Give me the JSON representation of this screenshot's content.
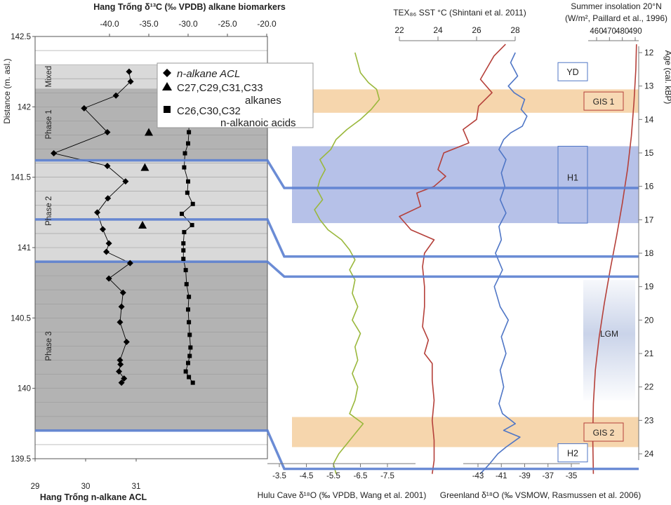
{
  "chart_data": {
    "type": "line",
    "title": "",
    "top_axes": {
      "d13c_title": "Hang Trống  δ¹³C (‰ VPDB) alkane biomarkers",
      "tex86_title": "TEX₈₆ SST °C (Shintani et al. 2011)",
      "insolation_title_1": "Summer insolation 20°N",
      "insolation_title_2": "(W/m², Paillard et al., 1996)"
    },
    "bottom_axes": {
      "acl_label": "Hang Trống  n-alkane ACL",
      "hulu_label": "Hulu Cave δ¹⁸O (‰ VPDB, Wang et al. 2001)",
      "greenland_label": "Greenland δ¹⁸O (‰ VSMOW, Rasmussen et al. 2006)"
    },
    "left_axis": {
      "label": "Distance (m. asl.)",
      "range": [
        139.5,
        142.5
      ],
      "ticks": [
        "142.5",
        "142",
        "141.5",
        "141",
        "140.5",
        "140",
        "139.5"
      ]
    },
    "right_axis": {
      "label": "Age (cal. kBP)",
      "range": [
        12,
        24.6
      ],
      "ticks": [
        "12",
        "13",
        "14",
        "15",
        "16",
        "17",
        "18",
        "19",
        "20",
        "21",
        "22",
        "23",
        "24"
      ]
    },
    "d13c_axis": {
      "range": [
        -42,
        -20
      ],
      "ticks": [
        "-40.0",
        "-35.0",
        "-30.0",
        "-25.0",
        "-20.0"
      ]
    },
    "acl_axis": {
      "range": [
        29,
        32.25
      ],
      "ticks": [
        "29",
        "30",
        "31"
      ]
    },
    "hulu_axis": {
      "range": [
        -3.2,
        -8.0
      ],
      "ticks": [
        "-3.5",
        "-4.5",
        "-5.5",
        "-6.5",
        "-7.5"
      ]
    },
    "greenland_axis": {
      "range": [
        -45.4,
        -34.6
      ],
      "ticks": [
        "-43",
        "-41",
        "-39",
        "-37",
        "-35"
      ]
    },
    "tex86_axis": {
      "range": [
        22,
        28
      ],
      "ticks": [
        "22",
        "24",
        "26",
        "28"
      ]
    },
    "insolation_axis": {
      "range": [
        443,
        494
      ],
      "ticks": [
        "460",
        "470",
        "480",
        "490"
      ]
    },
    "phases": [
      {
        "label": "Mixed",
        "top": 142.3,
        "bottom": 142.13,
        "shade": "#d9d9d9"
      },
      {
        "label": "Phase 1",
        "top": 142.13,
        "bottom": 141.62,
        "shade": "#b3b3b3"
      },
      {
        "label": "Phase 2",
        "top": 141.62,
        "bottom": 140.9,
        "shade": "#d9d9d9"
      },
      {
        "label": "Phase 3",
        "top": 140.9,
        "bottom": 139.7,
        "shade": "#b3b3b3"
      }
    ],
    "legend": {
      "acl": "n-alkane ACL",
      "alkanes_line1": "C27,C29,C31,C33",
      "alkanes_line2": "alkanes",
      "acids_line1": "C26,C30,C32",
      "acids_line2": "n-alkanoic acids"
    },
    "events": [
      {
        "label": "YD",
        "age": 12.55,
        "type": "label"
      },
      {
        "label": "GIS 1",
        "from": 13.1,
        "to": 13.8,
        "type": "orange-band"
      },
      {
        "label": "H1",
        "from": 14.8,
        "to": 17.1,
        "type": "blue-band"
      },
      {
        "label": "LGM",
        "from": 18.8,
        "to": 22.4,
        "type": "gradient"
      },
      {
        "label": "GIS 2",
        "from": 22.9,
        "to": 23.8,
        "type": "orange-band"
      },
      {
        "label": "H2",
        "age": 23.95,
        "type": "label"
      }
    ],
    "series": [
      {
        "name": "n-alkane ACL",
        "axis": "acl",
        "color": "#000000",
        "points": [
          [
            30.86,
            142.25
          ],
          [
            30.89,
            142.18
          ],
          [
            30.6,
            142.08
          ],
          [
            29.97,
            141.99
          ],
          [
            30.43,
            141.82
          ],
          [
            29.37,
            141.67
          ],
          [
            30.43,
            141.58
          ],
          [
            30.79,
            141.47
          ],
          [
            30.44,
            141.35
          ],
          [
            30.23,
            141.25
          ],
          [
            30.34,
            141.13
          ],
          [
            30.46,
            141.03
          ],
          [
            30.41,
            140.97
          ],
          [
            30.88,
            140.89
          ],
          [
            30.46,
            140.78
          ],
          [
            30.74,
            140.68
          ],
          [
            30.71,
            140.58
          ],
          [
            30.68,
            140.47
          ],
          [
            30.81,
            140.33
          ],
          [
            30.68,
            140.2
          ],
          [
            30.69,
            140.17
          ],
          [
            30.66,
            140.12
          ],
          [
            30.76,
            140.07
          ],
          [
            30.71,
            140.04
          ]
        ]
      },
      {
        "name": "C26,C30,C32 n-alkanoic acids",
        "axis": "d13c",
        "color": "#000000",
        "points": [
          [
            -29.8,
            142.25
          ],
          [
            -29.7,
            142.18
          ],
          [
            -29.8,
            142.11
          ],
          [
            -29.8,
            142.04
          ],
          [
            -29.9,
            141.96
          ],
          [
            -29.9,
            141.89
          ],
          [
            -29.9,
            141.82
          ],
          [
            -30.0,
            141.74
          ],
          [
            -30.4,
            141.67
          ],
          [
            -30.5,
            141.57
          ],
          [
            -30.0,
            141.47
          ],
          [
            -30.1,
            141.39
          ],
          [
            -29.4,
            141.31
          ],
          [
            -30.8,
            141.24
          ],
          [
            -29.5,
            141.16
          ],
          [
            -30.5,
            141.11
          ],
          [
            -30.6,
            141.03
          ],
          [
            -30.6,
            140.98
          ],
          [
            -30.6,
            140.92
          ],
          [
            -30.3,
            140.84
          ],
          [
            -30.2,
            140.74
          ],
          [
            -29.9,
            140.65
          ],
          [
            -30.0,
            140.56
          ],
          [
            -29.9,
            140.47
          ],
          [
            -29.8,
            140.38
          ],
          [
            -29.7,
            140.29
          ],
          [
            -29.8,
            140.23
          ],
          [
            -30.0,
            140.18
          ],
          [
            -30.3,
            140.12
          ],
          [
            -29.9,
            140.08
          ],
          [
            -29.4,
            140.04
          ]
        ]
      },
      {
        "name": "C27,C29,C31,C33 alkanes",
        "axis": "d13c",
        "color": "#000000",
        "points": [
          [
            -35.0,
            141.82
          ],
          [
            -35.5,
            141.57
          ],
          [
            -35.8,
            141.16
          ]
        ]
      },
      {
        "name": "Hulu Cave δ18O",
        "axis": "hulu",
        "color": "#9ab83c",
        "points": [
          [
            -6.3,
            12.0
          ],
          [
            -6.4,
            12.3
          ],
          [
            -6.5,
            12.6
          ],
          [
            -6.8,
            12.9
          ],
          [
            -7.1,
            13.1
          ],
          [
            -7.2,
            13.4
          ],
          [
            -6.9,
            13.7
          ],
          [
            -6.5,
            14.0
          ],
          [
            -6.0,
            14.3
          ],
          [
            -5.6,
            14.6
          ],
          [
            -5.4,
            14.9
          ],
          [
            -5.0,
            15.2
          ],
          [
            -5.2,
            15.5
          ],
          [
            -5.0,
            15.8
          ],
          [
            -4.9,
            16.1
          ],
          [
            -5.1,
            16.4
          ],
          [
            -4.8,
            16.7
          ],
          [
            -5.0,
            17.0
          ],
          [
            -5.3,
            17.3
          ],
          [
            -5.8,
            17.6
          ],
          [
            -6.1,
            17.9
          ],
          [
            -6.3,
            18.2
          ],
          [
            -6.1,
            18.5
          ],
          [
            -6.3,
            18.8
          ],
          [
            -6.2,
            19.2
          ],
          [
            -6.4,
            19.6
          ],
          [
            -6.2,
            20.0
          ],
          [
            -6.5,
            20.4
          ],
          [
            -6.3,
            20.8
          ],
          [
            -6.4,
            21.2
          ],
          [
            -6.2,
            21.6
          ],
          [
            -6.4,
            22.0
          ],
          [
            -6.3,
            22.4
          ],
          [
            -6.1,
            22.8
          ],
          [
            -6.6,
            23.1
          ],
          [
            -6.3,
            23.4
          ],
          [
            -6.0,
            23.7
          ],
          [
            -5.7,
            24.0
          ],
          [
            -5.5,
            24.3
          ],
          [
            -5.6,
            24.6
          ]
        ]
      },
      {
        "name": "TEX86 SST",
        "axis": "tex86",
        "color": "#b5403a",
        "points": [
          [
            27.5,
            11.75
          ],
          [
            26.9,
            12.1
          ],
          [
            26.6,
            12.4
          ],
          [
            26.2,
            12.8
          ],
          [
            26.8,
            13.2
          ],
          [
            26.1,
            13.6
          ],
          [
            26.0,
            14.0
          ],
          [
            25.3,
            14.3
          ],
          [
            25.6,
            14.7
          ],
          [
            24.3,
            15.0
          ],
          [
            24.0,
            15.5
          ],
          [
            24.4,
            15.7
          ],
          [
            23.8,
            16.0
          ],
          [
            22.9,
            16.2
          ],
          [
            23.1,
            16.6
          ],
          [
            22.0,
            16.9
          ],
          [
            22.6,
            17.3
          ],
          [
            23.8,
            17.6
          ],
          [
            23.3,
            18.0
          ],
          [
            23.2,
            18.4
          ],
          [
            23.3,
            19.0
          ],
          [
            23.3,
            19.6
          ],
          [
            23.2,
            20.2
          ],
          [
            23.5,
            20.6
          ],
          [
            23.3,
            21.0
          ],
          [
            23.7,
            21.3
          ],
          [
            23.7,
            21.8
          ],
          [
            23.8,
            22.4
          ],
          [
            23.7,
            23.0
          ],
          [
            23.8,
            23.6
          ],
          [
            23.8,
            24.2
          ],
          [
            23.7,
            24.6
          ]
        ]
      },
      {
        "name": "Greenland δ18O",
        "axis": "greenland",
        "color": "#4f76c6",
        "points": [
          [
            -39.8,
            12.0
          ],
          [
            -40.2,
            12.3
          ],
          [
            -39.6,
            12.7
          ],
          [
            -40.4,
            13.0
          ],
          [
            -39.9,
            13.2
          ],
          [
            -39.0,
            13.4
          ],
          [
            -39.3,
            13.7
          ],
          [
            -38.8,
            13.9
          ],
          [
            -39.2,
            14.2
          ],
          [
            -40.2,
            14.4
          ],
          [
            -40.8,
            14.6
          ],
          [
            -41.2,
            14.9
          ],
          [
            -40.6,
            15.2
          ],
          [
            -41.0,
            15.6
          ],
          [
            -40.7,
            16.0
          ],
          [
            -41.1,
            16.4
          ],
          [
            -40.6,
            16.8
          ],
          [
            -41.2,
            17.2
          ],
          [
            -41.0,
            17.6
          ],
          [
            -41.5,
            18.0
          ],
          [
            -40.9,
            18.5
          ],
          [
            -41.6,
            19.0
          ],
          [
            -41.1,
            19.6
          ],
          [
            -40.4,
            20.0
          ],
          [
            -41.0,
            20.5
          ],
          [
            -40.6,
            21.0
          ],
          [
            -41.1,
            21.5
          ],
          [
            -40.8,
            22.0
          ],
          [
            -41.2,
            22.5
          ],
          [
            -40.9,
            22.8
          ],
          [
            -39.8,
            23.1
          ],
          [
            -40.8,
            23.3
          ],
          [
            -39.4,
            23.5
          ],
          [
            -40.6,
            23.8
          ],
          [
            -41.3,
            24.0
          ],
          [
            -42.0,
            24.3
          ],
          [
            -42.8,
            24.6
          ]
        ]
      },
      {
        "name": "Summer insolation 20°N",
        "axis": "insolation",
        "color": "#b5403a",
        "points": [
          [
            491.0,
            11.75
          ],
          [
            490.5,
            12.5
          ],
          [
            489.0,
            13.5
          ],
          [
            487.0,
            14.5
          ],
          [
            484.0,
            15.5
          ],
          [
            480.0,
            16.5
          ],
          [
            475.5,
            17.5
          ],
          [
            470.5,
            18.5
          ],
          [
            466.0,
            19.5
          ],
          [
            462.0,
            20.5
          ],
          [
            459.0,
            21.5
          ],
          [
            457.5,
            22.5
          ],
          [
            457.0,
            23.5
          ],
          [
            457.5,
            24.6
          ]
        ]
      }
    ],
    "correlation_lines": [
      {
        "depth": 141.62,
        "age": 16.05
      },
      {
        "depth": 141.2,
        "age": 18.1
      },
      {
        "depth": 140.9,
        "age": 18.7
      },
      {
        "depth": 139.7,
        "age": 24.45
      }
    ]
  }
}
